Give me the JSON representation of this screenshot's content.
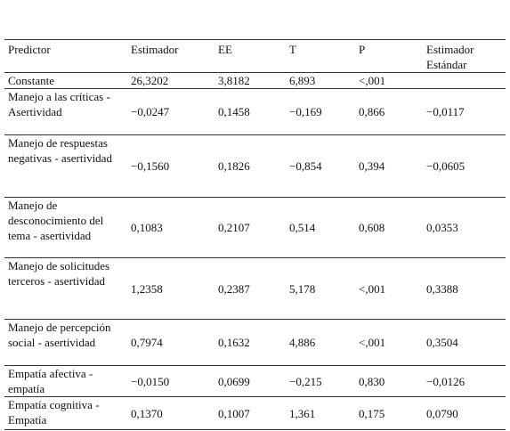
{
  "table": {
    "header": [
      "Predictor",
      "Estimador",
      "EE",
      "T",
      "P",
      "Estimador Estándar"
    ],
    "rows": [
      [
        "Constante",
        "26,3202",
        "3,8182",
        "6,893",
        "<,001",
        ""
      ],
      [
        "Manejo a las críticas - Asertividad",
        "−0,0247",
        "0,1458",
        "−0,169",
        "0,866",
        "−0,0117"
      ],
      [
        "Manejo de respuestas negativas - asertividad",
        "−0,1560",
        "0,1826",
        "−0,854",
        "0,394",
        "−0,0605"
      ],
      [
        "Manejo de desconocimiento del tema - asertividad",
        "0,1083",
        "0,2107",
        "0,514",
        "0,608",
        "0,0353"
      ],
      [
        "Manejo de solicitudes terceros - asertividad",
        "1,2358",
        "0,2387",
        "5,178",
        "<,001",
        "0,3388"
      ],
      [
        "Manejo de percepción social - asertividad",
        "0,7974",
        "0,1632",
        "4,886",
        "<,001",
        "0,3504"
      ],
      [
        "Empatía afectiva - empatía",
        "−0,0150",
        "0,0699",
        "−0,215",
        "0,830",
        "−0,0126"
      ],
      [
        "Empatía cognitiva - Empatía",
        "0,1370",
        "0,1007",
        "1,361",
        "0,175",
        "0,0790"
      ]
    ]
  }
}
